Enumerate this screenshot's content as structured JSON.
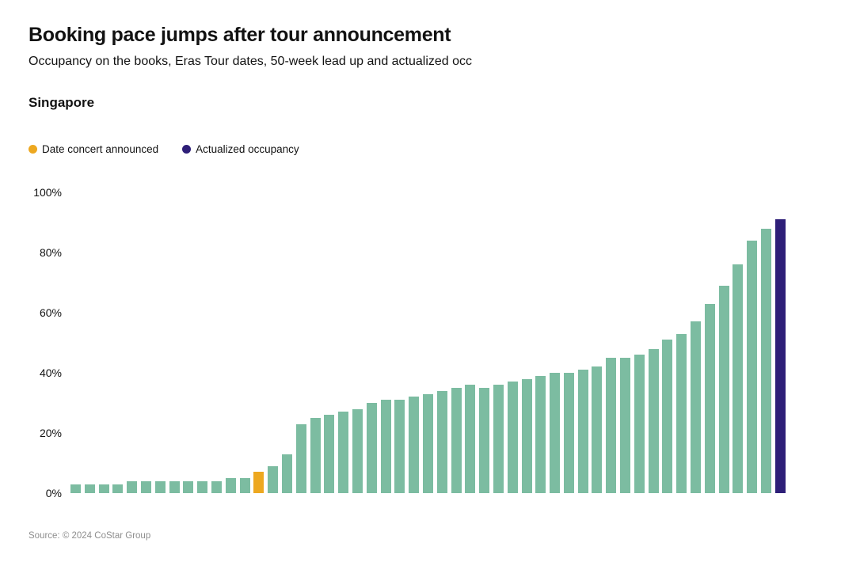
{
  "header": {
    "title": "Booking pace jumps after tour announcement",
    "subtitle": "Occupancy on the books, Eras Tour dates, 50-week lead up and actualized occ",
    "panel_label": "Singapore"
  },
  "legend": {
    "items": [
      {
        "name": "date-concert-announced",
        "label": "Date concert announced",
        "color": "#EDA820"
      },
      {
        "name": "actualized-occupancy",
        "label": "Actualized occupancy",
        "color": "#2E1F78"
      }
    ]
  },
  "footer": {
    "source": "Source: © 2024 CoStar Group"
  },
  "chart_data": {
    "type": "bar",
    "title": "Booking pace jumps after tour announcement",
    "subtitle": "Occupancy on the books, Eras Tour dates, 50-week lead up and actualized occ",
    "panel_label": "Singapore",
    "xlabel": "",
    "ylabel": "",
    "unit": "%",
    "ylim": [
      0,
      100
    ],
    "yticks": [
      0,
      20,
      40,
      60,
      80,
      100
    ],
    "ytick_labels": [
      "0%",
      "20%",
      "40%",
      "60%",
      "80%",
      "100%"
    ],
    "grid": false,
    "legend_position": "top-left",
    "n_bars": 51,
    "series": [
      {
        "name": "Occupancy on the books (50-week lead up and actualized)",
        "values": [
          3,
          3,
          3,
          3,
          4,
          4,
          4,
          4,
          4,
          4,
          4,
          5,
          5,
          7,
          9,
          13,
          23,
          25,
          26,
          27,
          28,
          30,
          31,
          31,
          32,
          33,
          34,
          35,
          36,
          35,
          36,
          37,
          38,
          39,
          40,
          40,
          41,
          42,
          45,
          45,
          46,
          48,
          51,
          53,
          57,
          63,
          69,
          76,
          84,
          88,
          91
        ]
      }
    ],
    "special_bars": {
      "announced_index": 13,
      "actualized_index": 50
    },
    "colors": {
      "pace": "#7CBCA1",
      "announced": "#EDA820",
      "actualized": "#2E1F78"
    }
  }
}
